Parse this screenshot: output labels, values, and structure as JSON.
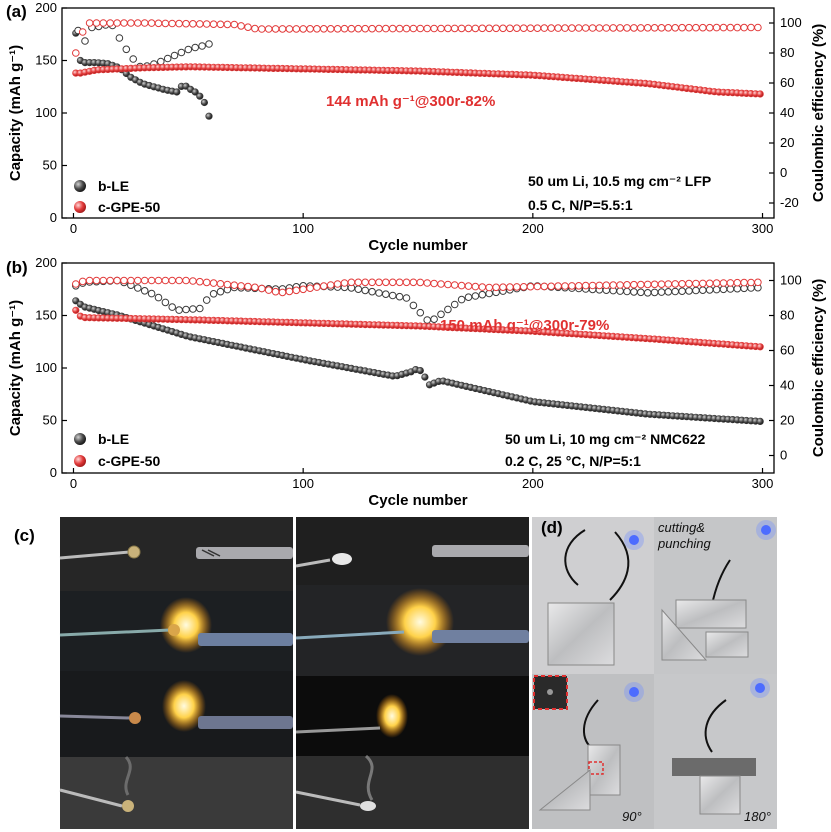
{
  "colors": {
    "black_series": "#3a3a3a",
    "red_series": "#e23a3a",
    "annotation": "#e03030"
  },
  "panels": {
    "a": "(a)",
    "b": "(b)",
    "c": "(c)",
    "d": "(d)"
  },
  "chart_data": [
    {
      "type": "scatter",
      "panel": "(a)",
      "xlabel": "Cycle number",
      "ylabel_left": "Capacity (mAh g⁻¹)",
      "ylabel_right": "Coulombic efficiency (%)",
      "xlim": [
        -5,
        305
      ],
      "ylim_left": [
        0,
        200
      ],
      "ylim_right": [
        -30,
        110
      ],
      "xticks": [
        "0",
        "100",
        "200",
        "300"
      ],
      "yticks_left": [
        "0",
        "50",
        "100",
        "150",
        "200"
      ],
      "yticks_right": [
        "-20",
        "0",
        "20",
        "40",
        "60",
        "80",
        "100"
      ],
      "legend": [
        "b-LE",
        "c-GPE-50"
      ],
      "annotation": "144 mAh g⁻¹@300r-82%",
      "notes": [
        "50 um Li, 10.5 mg cm⁻² LFP",
        "0.5 C, N/P=5.5:1"
      ],
      "series": [
        {
          "name": "b-LE capacity",
          "axis": "left",
          "x": [
            1,
            2,
            3,
            5,
            10,
            15,
            20,
            25,
            30,
            35,
            40,
            45,
            48,
            50,
            52,
            55,
            57,
            58,
            59
          ],
          "y": [
            176,
            160,
            150,
            148,
            148,
            147,
            143,
            134,
            128,
            125,
            122,
            120,
            128,
            123,
            122,
            116,
            110,
            102,
            97
          ]
        },
        {
          "name": "b-LE CE",
          "axis": "right",
          "x": [
            2,
            5,
            8,
            12,
            15,
            18,
            20,
            22,
            24,
            26,
            28,
            30,
            33,
            36,
            39,
            42,
            45,
            48,
            51,
            54,
            57,
            59
          ],
          "y": [
            95,
            88,
            97,
            98,
            99,
            98,
            90,
            85,
            80,
            76,
            72,
            70,
            72,
            73,
            75,
            77,
            79,
            81,
            83,
            84,
            85,
            86
          ]
        },
        {
          "name": "c-GPE-50 capacity",
          "axis": "left",
          "x": [
            1,
            2,
            3,
            10,
            30,
            50,
            100,
            150,
            200,
            250,
            280,
            300
          ],
          "y": [
            138,
            137,
            138,
            141,
            143,
            144,
            142,
            140,
            136,
            128,
            120,
            118
          ]
        },
        {
          "name": "c-GPE-50 CE",
          "axis": "right",
          "x": [
            1,
            2,
            5,
            30,
            70,
            80,
            300
          ],
          "y": [
            80,
            82,
            100,
            100,
            99,
            96,
            97
          ]
        }
      ]
    },
    {
      "type": "scatter",
      "panel": "(b)",
      "xlabel": "Cycle number",
      "ylabel_left": "Capacity (mAh g⁻¹)",
      "ylabel_right": "Coulombic efficiency (%)",
      "xlim": [
        -5,
        305
      ],
      "ylim_left": [
        0,
        200
      ],
      "ylim_right": [
        -10,
        110
      ],
      "xticks": [
        "0",
        "100",
        "200",
        "300"
      ],
      "yticks_left": [
        "0",
        "50",
        "100",
        "150",
        "200"
      ],
      "yticks_right": [
        "0",
        "20",
        "40",
        "60",
        "80",
        "100"
      ],
      "legend": [
        "b-LE",
        "c-GPE-50"
      ],
      "annotation": "150 mAh g⁻¹@300r-79%",
      "notes": [
        "50 um Li, 10 mg cm⁻² NMC622",
        "0.2 C,  25 °C, N/P=5:1"
      ],
      "series": [
        {
          "name": "b-LE capacity",
          "axis": "left",
          "x": [
            1,
            2,
            5,
            20,
            50,
            100,
            140,
            148,
            150,
            152,
            155,
            160,
            200,
            250,
            300
          ],
          "y": [
            164,
            162,
            158,
            150,
            130,
            108,
            92,
            97,
            100,
            95,
            84,
            88,
            68,
            56,
            49
          ]
        },
        {
          "name": "b-LE CE",
          "axis": "right",
          "x": [
            1,
            5,
            20,
            35,
            45,
            55,
            60,
            70,
            90,
            100,
            120,
            145,
            155,
            170,
            200,
            250,
            300
          ],
          "y": [
            97,
            99,
            100,
            92,
            83,
            84,
            92,
            96,
            95,
            97,
            96,
            90,
            76,
            90,
            97,
            93,
            96
          ]
        },
        {
          "name": "c-GPE-50 capacity",
          "axis": "left",
          "x": [
            1,
            2,
            5,
            50,
            100,
            150,
            200,
            250,
            300
          ],
          "y": [
            155,
            150,
            148,
            146,
            143,
            140,
            135,
            128,
            120
          ]
        },
        {
          "name": "c-GPE-50 CE",
          "axis": "right",
          "x": [
            1,
            5,
            50,
            80,
            90,
            120,
            150,
            180,
            300
          ],
          "y": [
            98,
            100,
            100,
            96,
            93,
            99,
            99,
            96,
            99
          ]
        }
      ]
    }
  ],
  "photos": {
    "cut_label_line1": "cutting&",
    "cut_label_line2": "punching",
    "angle_90": "90°",
    "angle_180": "180°"
  }
}
